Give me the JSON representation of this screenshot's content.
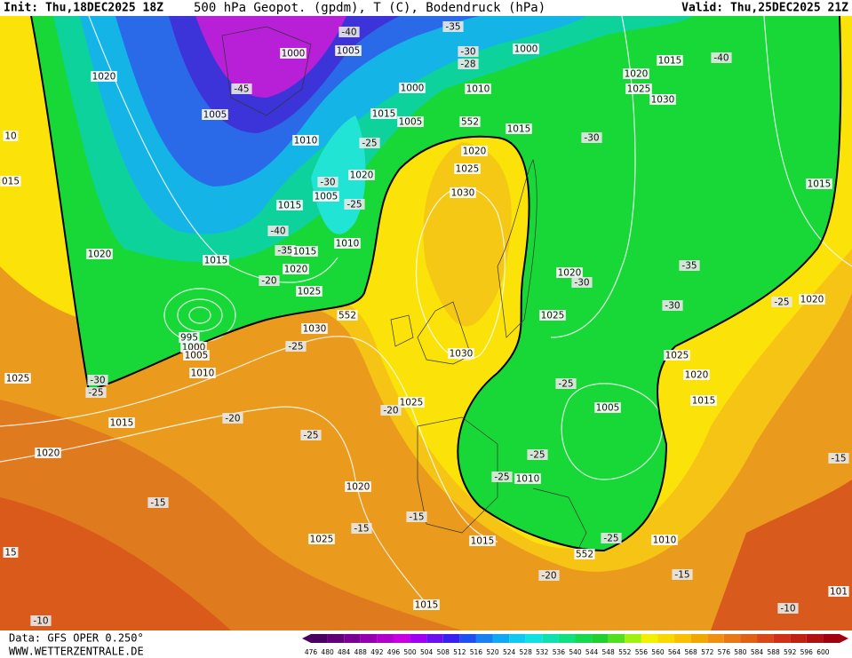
{
  "header": {
    "init": "Init: Thu,18DEC2025 18Z",
    "title": "500 hPa Geopot. (gpdm), T (C), Bodendruck (hPa)",
    "valid": "Valid: Thu,25DEC2025 21Z"
  },
  "map_labels": [
    "1000",
    "1005",
    "-40",
    "-35",
    "-30",
    "-28",
    "1000",
    "1015",
    "-40",
    "1020",
    "1025",
    "1030",
    "1020",
    "-45",
    "1005",
    "1000",
    "1010",
    "1015",
    "1005",
    "552",
    "1015",
    "-30",
    "1010",
    "-25",
    "1020",
    "1025",
    "1020",
    "1005",
    "-30",
    "-25",
    "1030",
    "1015",
    "1015",
    "-40",
    "1010",
    "-35",
    "1015",
    "1020",
    "1015",
    "1020",
    "-20",
    "1020",
    "-30",
    "-35",
    "1025",
    "552",
    "1025",
    "-30",
    "-25",
    "1020",
    "1030",
    "995",
    "1000",
    "1005",
    "-25",
    "1030",
    "1025",
    "1010",
    "1020",
    "1025",
    "-30",
    "-25",
    "-25",
    "1015",
    "1025",
    "-20",
    "1005",
    "-20",
    "1015",
    "-25",
    "1020",
    "-25",
    "-25",
    "1010",
    "1020",
    "-15",
    "-15",
    "-15",
    "-15",
    "1025",
    "1015",
    "-25",
    "1010",
    "552",
    "-20",
    "-15",
    "1015",
    "101",
    "-10",
    "-10",
    "15",
    "10",
    "015"
  ],
  "footer": {
    "data_source": "Data: GFS OPER 0.250°",
    "website": "WWW.WETTERZENTRALE.DE"
  },
  "color_scale": [
    476,
    480,
    484,
    488,
    492,
    496,
    500,
    504,
    508,
    512,
    516,
    520,
    524,
    528,
    532,
    536,
    540,
    544,
    548,
    552,
    556,
    560,
    564,
    568,
    572,
    576,
    580,
    584,
    588,
    592,
    596,
    600
  ]
}
